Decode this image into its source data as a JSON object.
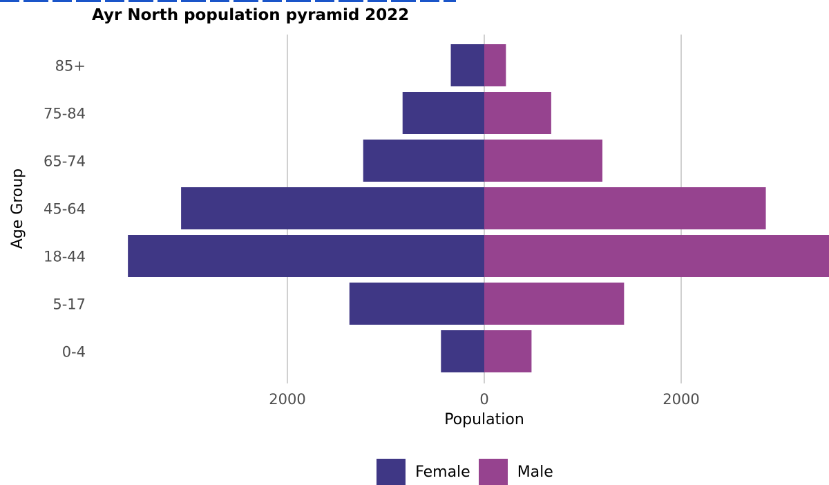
{
  "chart_data": {
    "type": "bar",
    "orientation": "horizontal",
    "layout": "population-pyramid",
    "title": "Ayr North population pyramid 2022",
    "xlabel": "Population",
    "ylabel": "Age Group",
    "categories": [
      "0-4",
      "5-17",
      "18-44",
      "45-64",
      "65-74",
      "75-84",
      "85+"
    ],
    "series": [
      {
        "name": "Female",
        "side": "left",
        "color": "#3f3785",
        "values": [
          440,
          1370,
          3620,
          3080,
          1230,
          830,
          340
        ]
      },
      {
        "name": "Male",
        "side": "right",
        "color": "#96438f",
        "values": [
          480,
          1420,
          3560,
          2860,
          1200,
          680,
          220
        ]
      }
    ],
    "xlim": [
      -3650,
      3520
    ],
    "xticks": [
      -2000,
      0,
      2000
    ],
    "xtick_labels": [
      "2000",
      "0",
      "2000"
    ],
    "grid": "vertical-major",
    "legend_position": "bottom"
  }
}
